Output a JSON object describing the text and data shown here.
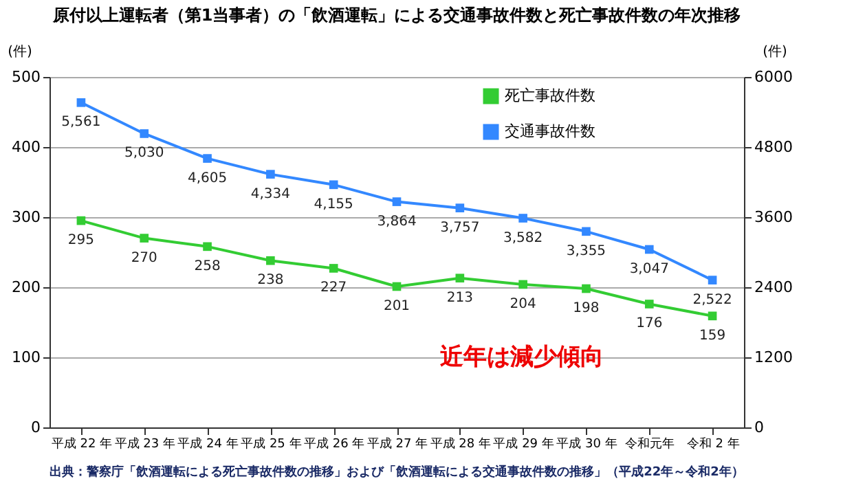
{
  "chart_data": {
    "type": "line",
    "title": "原付以上運転者（第1当事者）の「飲酒運転」による交通事故件数と死亡事故件数の年次推移",
    "categories": [
      "平成 22 年",
      "平成 23 年",
      "平成 24 年",
      "平成 25 年",
      "平成 26 年",
      "平成 27 年",
      "平成 28 年",
      "平成 29 年",
      "平成 30 年",
      "令和元年",
      "令和 2 年"
    ],
    "series": [
      {
        "name": "死亡事故件数",
        "color": "#33cc33",
        "values": [
          295,
          270,
          258,
          238,
          227,
          201,
          213,
          204,
          198,
          176,
          159
        ],
        "value_labels": [
          "295",
          "270",
          "258",
          "238",
          "227",
          "201",
          "213",
          "204",
          "198",
          "176",
          "159"
        ]
      },
      {
        "name": "交通事故件数",
        "color": "#3388ff",
        "axis": "y2",
        "values": [
          5561,
          5030,
          4605,
          4334,
          4155,
          3864,
          3757,
          3582,
          3355,
          3047,
          2522
        ],
        "value_labels": [
          "5,561",
          "5,030",
          "4,605",
          "4,334",
          "4,155",
          "3,864",
          "3,757",
          "3,582",
          "3,355",
          "3,047",
          "2,522"
        ]
      }
    ],
    "ylabel": "(件)",
    "y2label": "(件)",
    "ylim": [
      0,
      500
    ],
    "yticks": [
      0,
      100,
      200,
      300,
      400,
      500
    ],
    "y2lim": [
      0,
      6000
    ],
    "y2ticks": [
      0,
      1200,
      2400,
      3600,
      4800,
      6000
    ],
    "marker": "square",
    "grid": "y",
    "legend": "top right",
    "annotations": [
      "近年は減少傾向",
      "出典：警察庁「飲酒運転による死亡事故件数の推移」および「飲酒運転による交通事故件数の推移」（平成22年～令和2年）"
    ]
  }
}
